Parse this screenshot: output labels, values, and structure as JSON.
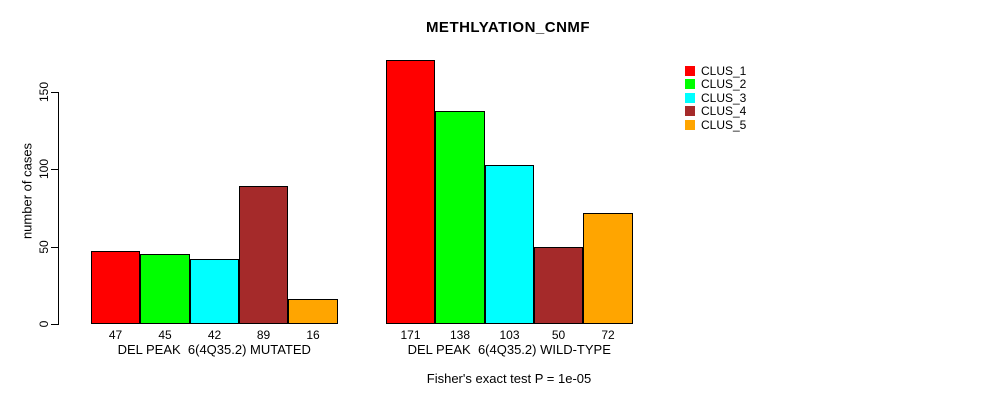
{
  "title": "METHLYATION_CNMF",
  "chart_data": {
    "type": "bar",
    "title": "METHLYATION_CNMF",
    "xlabel": "",
    "ylabel": "number of cases",
    "yticks": [
      0,
      50,
      100,
      150
    ],
    "ylim": [
      0,
      180
    ],
    "grid": false,
    "legend_position": "right",
    "groups": [
      {
        "label": "DEL PEAK  6(4Q35.2) MUTATED",
        "values": [
          47,
          45,
          42,
          89,
          16
        ]
      },
      {
        "label": "DEL PEAK  6(4Q35.2) WILD-TYPE",
        "values": [
          171,
          138,
          103,
          50,
          72
        ]
      }
    ],
    "series": [
      {
        "name": "CLUS_1",
        "color": "#FF0000",
        "values": [
          47,
          171
        ]
      },
      {
        "name": "CLUS_2",
        "color": "#00FF00",
        "values": [
          45,
          138
        ]
      },
      {
        "name": "CLUS_3",
        "color": "#00FFFF",
        "values": [
          42,
          103
        ]
      },
      {
        "name": "CLUS_4",
        "color": "#A52A2A",
        "values": [
          89,
          50
        ]
      },
      {
        "name": "CLUS_5",
        "color": "#FFA500",
        "values": [
          16,
          72
        ]
      }
    ],
    "bar_value_labels": [
      [
        47,
        45,
        42,
        89,
        16
      ],
      [
        171,
        138,
        103,
        50,
        72
      ]
    ],
    "annotation": "Fisher's exact test P = 1e-05"
  }
}
